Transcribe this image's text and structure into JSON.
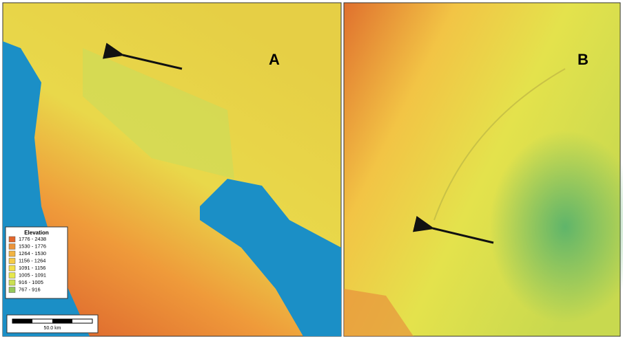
{
  "panels": [
    {
      "label": "A"
    },
    {
      "label": "B"
    }
  ],
  "legend": {
    "title": "Elevation",
    "items": [
      {
        "label": "1776 - 2438",
        "color": "#e2662c"
      },
      {
        "label": "1530 - 1776",
        "color": "#ec943a"
      },
      {
        "label": "1264 - 1530",
        "color": "#f2b442"
      },
      {
        "label": "1156 - 1264",
        "color": "#f5cb46"
      },
      {
        "label": "1091 - 1156",
        "color": "#f3df4a"
      },
      {
        "label": "1005 - 1091",
        "color": "#e6e84c"
      },
      {
        "label": "916 - 1005",
        "color": "#cbe052"
      },
      {
        "label": "767 - 916",
        "color": "#96c85a"
      }
    ]
  },
  "scale_bar": {
    "label": "50.0 km"
  }
}
